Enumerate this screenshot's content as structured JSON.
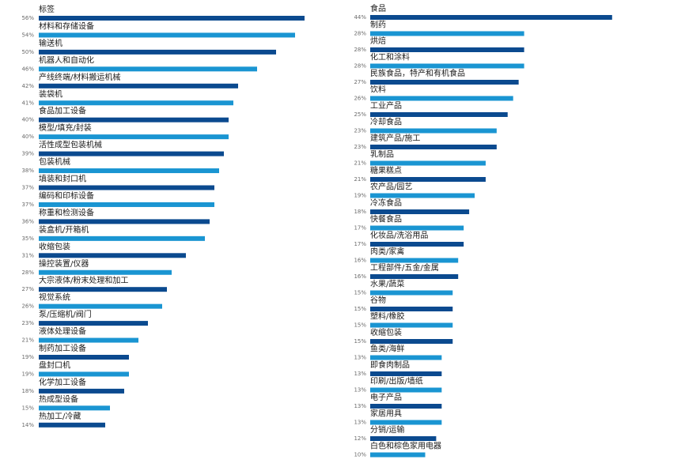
{
  "chart_data": [
    {
      "type": "bar",
      "orientation": "horizontal",
      "value_format": "percent",
      "colors": [
        "#0b4a8f",
        "#1a95d2"
      ],
      "categories": [
        "标签",
        "材料和存储设备",
        "输送机",
        "机器人和自动化",
        "产线终端/材料搬运机械",
        "装袋机",
        "食品加工设备",
        "模型/填充/封装",
        "活性成型包装机械",
        "包装机械",
        "填装和封口机",
        "编码和印标设备",
        "称重和检测设备",
        "装盒机/开箱机",
        "收缩包装",
        "操控装置/仪器",
        "大宗液体/粉末处理和加工",
        "视觉系统",
        "泵/压缩机/阀门",
        "液体处理设备",
        "制药加工设备",
        "盘封口机",
        "化学加工设备",
        "热成型设备",
        "热加工/冷藏"
      ],
      "values": [
        56,
        54,
        50,
        46,
        42,
        41,
        40,
        40,
        39,
        38,
        37,
        37,
        36,
        35,
        31,
        28,
        27,
        26,
        23,
        21,
        19,
        19,
        18,
        15,
        14
      ],
      "value_labels": [
        "56%",
        "54%",
        "50%",
        "46%",
        "42%",
        "41%",
        "40%",
        "40%",
        "39%",
        "38%",
        "37%",
        "37%",
        "36%",
        "35%",
        "31%",
        "28%",
        "27%",
        "26%",
        "23%",
        "21%",
        "19%",
        "19%",
        "18%",
        "15%",
        "14%"
      ]
    },
    {
      "type": "bar",
      "orientation": "horizontal",
      "value_format": "percent",
      "colors": [
        "#0b4a8f",
        "#1a95d2"
      ],
      "categories": [
        "食品",
        "制药",
        "烘焙",
        "化工和涂料",
        "民族食品，特产和有机食品",
        "饮料",
        "工业产品",
        "冷却食品",
        "建筑产品/施工",
        "乳制品",
        "糖果糕点",
        "农产品/园艺",
        "冷冻食品",
        "快餐食品",
        "化妆品/洗浴用品",
        "肉类/家禽",
        "工程部件/五金/金属",
        "水果/蔬菜",
        "谷物",
        "塑料/橡胶",
        "收缩包装",
        "鱼类/海鲜",
        "即食肉制品",
        "印刷/出版/墙纸",
        "电子产品",
        "家居用具",
        "分销/运输",
        "白色和棕色家用电器"
      ],
      "values": [
        44,
        28,
        28,
        28,
        27,
        26,
        25,
        23,
        23,
        21,
        21,
        19,
        18,
        17,
        17,
        16,
        16,
        15,
        15,
        15,
        15,
        13,
        13,
        13,
        13,
        13,
        12,
        10
      ],
      "value_labels": [
        "44%",
        "28%",
        "28%",
        "28%",
        "27%",
        "26%",
        "25%",
        "23%",
        "23%",
        "21%",
        "21%",
        "19%",
        "18%",
        "17%",
        "17%",
        "16%",
        "16%",
        "15%",
        "15%",
        "15%",
        "15%",
        "13%",
        "13%",
        "13%",
        "13%",
        "13%",
        "12%",
        "10%"
      ]
    }
  ]
}
